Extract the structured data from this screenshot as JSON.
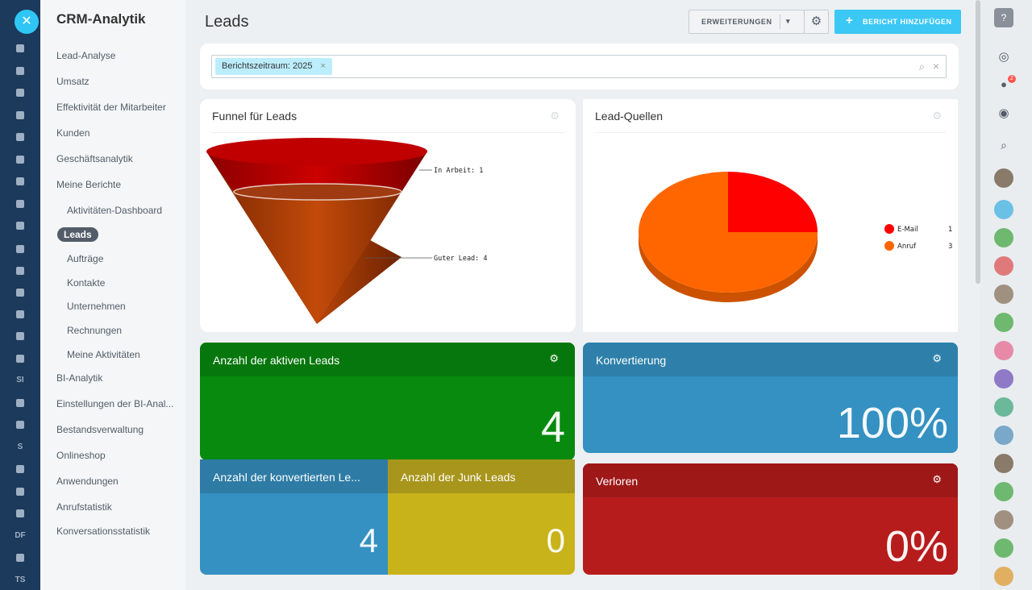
{
  "rail": {
    "close_icon": "close-icon",
    "labels": [
      "SI",
      "S",
      "DF",
      "TS"
    ]
  },
  "sidebar": {
    "title": "CRM-Analytik",
    "items": [
      {
        "label": "Lead-Analyse"
      },
      {
        "label": "Umsatz"
      },
      {
        "label": "Effektivität der Mitarbeiter"
      },
      {
        "label": "Kunden"
      },
      {
        "label": "Geschäftsanalytik"
      },
      {
        "label": "Meine Berichte"
      },
      {
        "label": "Aktivitäten-Dashboard"
      },
      {
        "label": "Leads"
      },
      {
        "label": "Aufträge"
      },
      {
        "label": "Kontakte"
      },
      {
        "label": "Unternehmen"
      },
      {
        "label": "Rechnungen"
      },
      {
        "label": "Meine Aktivitäten"
      },
      {
        "label": "BI-Analytik"
      },
      {
        "label": "Einstellungen der BI-Anal..."
      },
      {
        "label": "Bestandsverwaltung"
      },
      {
        "label": "Onlineshop"
      },
      {
        "label": "Anwendungen"
      },
      {
        "label": "Anrufstatistik"
      },
      {
        "label": "Konversationsstatistik"
      }
    ]
  },
  "header": {
    "title": "Leads",
    "extensions_label": "ERWEITERUNGEN",
    "add_report_label": "BERICHT HINZUFÜGEN"
  },
  "filter": {
    "tag": "Berichtszeitraum: 2025"
  },
  "funnel": {
    "title": "Funnel für Leads",
    "stages": [
      {
        "label": "In Arbeit: 1",
        "value": 1
      },
      {
        "label": "Guter Lead: 4",
        "value": 4
      }
    ]
  },
  "sources": {
    "title": "Lead-Quellen",
    "legend": [
      {
        "label": "E-Mail",
        "value": "1",
        "color": "#ff0000"
      },
      {
        "label": "Anruf",
        "value": "3",
        "color": "#ff6600"
      }
    ]
  },
  "chart_data": {
    "type": "pie",
    "title": "Lead-Quellen",
    "categories": [
      "E-Mail",
      "Anruf"
    ],
    "values": [
      1,
      3
    ],
    "colors": [
      "#ff0000",
      "#ff6600"
    ],
    "legend": "right"
  },
  "widgets": {
    "active": {
      "title": "Anzahl der aktiven Leads",
      "value": "4",
      "color": "#078a0e"
    },
    "conversion": {
      "title": "Konvertierung",
      "value": "100%",
      "color": "#3491c1"
    },
    "converted": {
      "title": "Anzahl der konvertierten Le...",
      "value": "4",
      "color": "#3491c1"
    },
    "junk": {
      "title": "Anzahl der Junk Leads",
      "value": "0",
      "color": "#c9b31a"
    },
    "lost": {
      "title": "Verloren",
      "value": "0%",
      "color": "#b71c1c"
    }
  }
}
